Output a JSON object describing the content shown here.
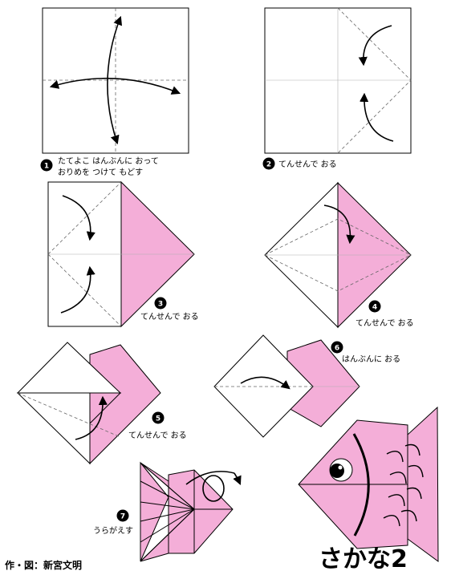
{
  "colors": {
    "paper_front": "#f4aed8",
    "paper_back": "#ffffff",
    "line": "#000000",
    "fold_guide": "#666666"
  },
  "steps": [
    {
      "number": "1",
      "lines": [
        "たてよこ はんぶんに おって",
        "おりめを つけて もどす"
      ]
    },
    {
      "number": "2",
      "lines": [
        "てんせんで おる"
      ]
    },
    {
      "number": "3",
      "lines": [
        "てんせんで おる"
      ]
    },
    {
      "number": "4",
      "lines": [
        "てんせんで おる"
      ]
    },
    {
      "number": "5",
      "lines": [
        "てんせんで おる"
      ]
    },
    {
      "number": "6",
      "lines": [
        "はんぶんに おる"
      ]
    },
    {
      "number": "7",
      "lines": [
        "うらがえす"
      ]
    }
  ],
  "credit": "作・図：新宮文明",
  "title": "さかな2",
  "icons": [
    "fold-arrow-icon",
    "turn-over-icon",
    "fish-eye-icon",
    "fish-scales-icon"
  ]
}
